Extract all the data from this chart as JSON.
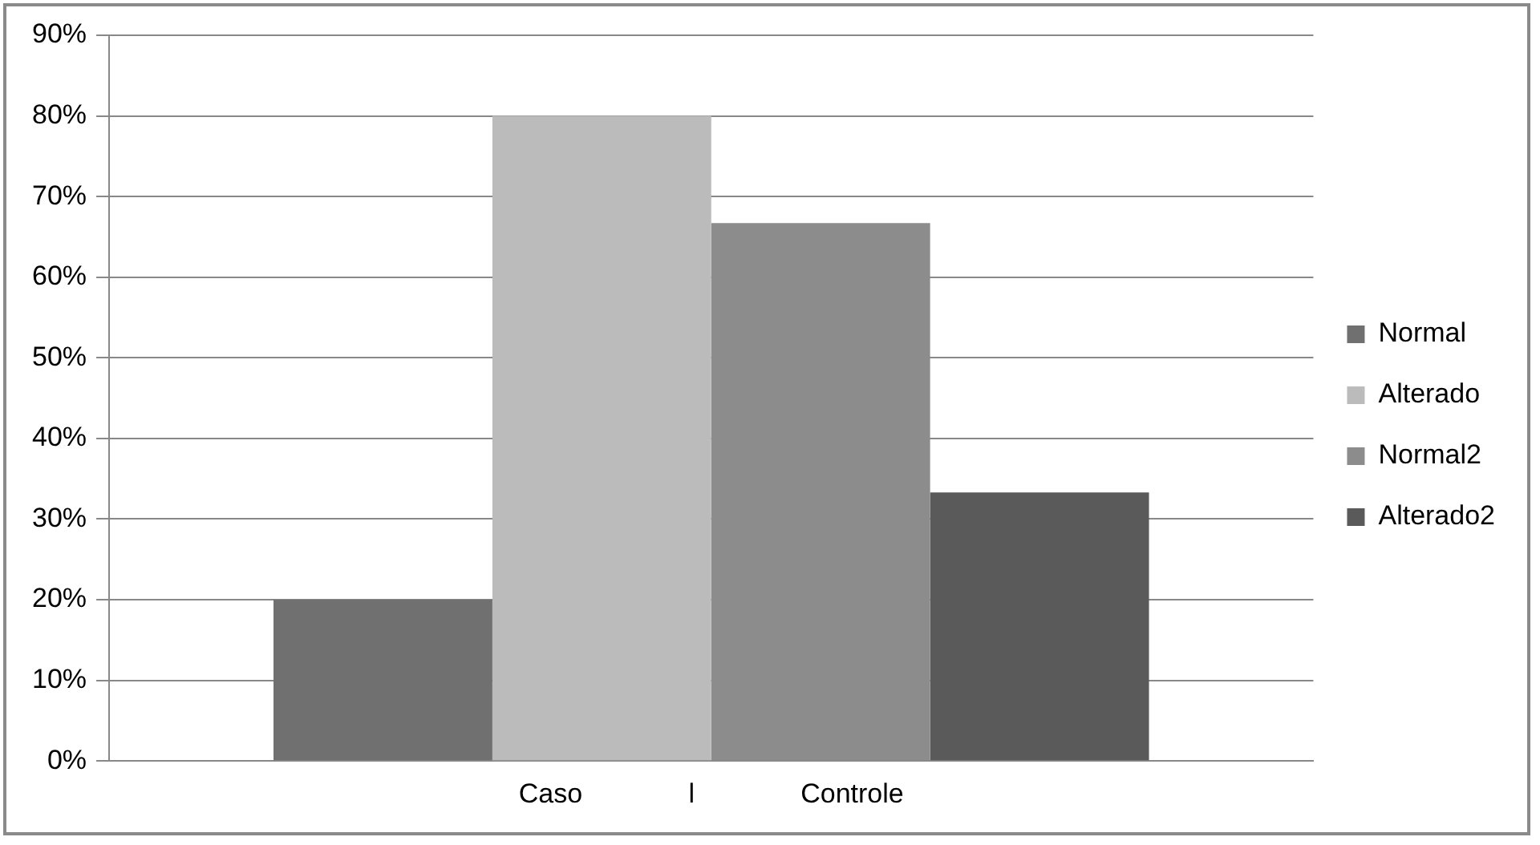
{
  "chart_data": {
    "type": "bar",
    "categories": [
      "Caso              l              Controle"
    ],
    "series": [
      {
        "name": "Normal",
        "color": "#707070",
        "values": [
          20
        ]
      },
      {
        "name": "Alterado",
        "color": "#bbbbbb",
        "values": [
          80
        ]
      },
      {
        "name": "Normal2",
        "color": "#8c8c8c",
        "values": [
          66.7
        ]
      },
      {
        "name": "Alterado2",
        "color": "#5a5a5a",
        "values": [
          33.3
        ]
      }
    ],
    "ylim": [
      0,
      90
    ],
    "yticks": [
      {
        "value": 0,
        "label": "0%"
      },
      {
        "value": 10,
        "label": "10%"
      },
      {
        "value": 20,
        "label": "20%"
      },
      {
        "value": 30,
        "label": "30%"
      },
      {
        "value": 40,
        "label": "40%"
      },
      {
        "value": 50,
        "label": "50%"
      },
      {
        "value": 60,
        "label": "60%"
      },
      {
        "value": 70,
        "label": "70%"
      },
      {
        "value": 80,
        "label": "80%"
      },
      {
        "value": 90,
        "label": "90%"
      }
    ],
    "grid": "y",
    "legend": "right"
  }
}
